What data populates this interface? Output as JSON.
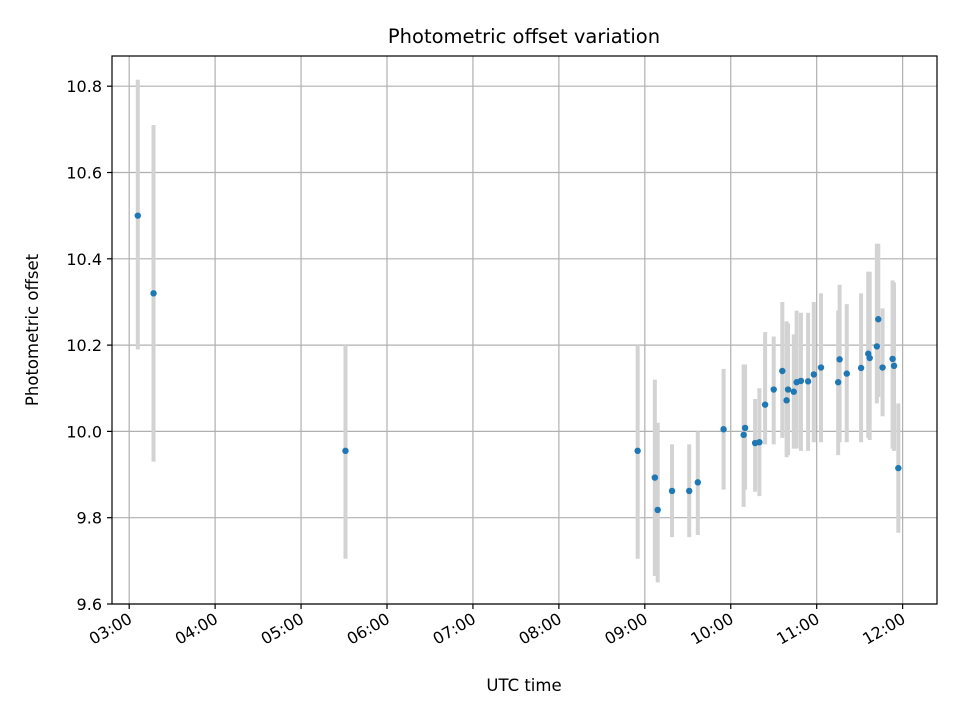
{
  "chart_data": {
    "type": "scatter",
    "title": "Photometric offset variation",
    "xlabel": "UTC time",
    "ylabel": "Photometric offset",
    "x_type": "time",
    "xlim": [
      "02:48",
      "12:24"
    ],
    "ylim": [
      9.6,
      10.87
    ],
    "x_ticks": [
      "03:00",
      "04:00",
      "05:00",
      "06:00",
      "07:00",
      "08:00",
      "09:00",
      "10:00",
      "11:00",
      "12:00"
    ],
    "y_ticks": [
      9.6,
      9.8,
      10.0,
      10.2,
      10.4,
      10.6,
      10.8
    ],
    "grid": true,
    "legend": "none",
    "colors": {
      "point": "#1f77b4",
      "error_bar": "#d3d3d3",
      "grid": "#b0b0b0"
    },
    "series": [
      {
        "x": [
          "03:06",
          "03:17",
          "05:31",
          "08:55",
          "09:07",
          "09:09",
          "09:19",
          "09:31",
          "09:37",
          "09:55",
          "10:09",
          "10:10",
          "10:17",
          "10:20",
          "10:24",
          "10:30",
          "10:36",
          "10:39",
          "10:40",
          "10:44",
          "10:46",
          "10:49",
          "10:54",
          "10:58",
          "11:03",
          "11:15",
          "11:16",
          "11:21",
          "11:31",
          "11:36",
          "11:37",
          "11:42",
          "11:43",
          "11:46",
          "11:53",
          "11:54",
          "11:57"
        ],
        "y": [
          10.5,
          10.32,
          9.955,
          9.955,
          9.893,
          9.818,
          9.862,
          9.862,
          9.882,
          10.005,
          9.992,
          10.008,
          9.973,
          9.975,
          10.062,
          10.097,
          10.14,
          10.072,
          10.097,
          10.092,
          10.114,
          10.117,
          10.116,
          10.132,
          10.148,
          10.114,
          10.167,
          10.134,
          10.147,
          10.18,
          10.17,
          10.197,
          10.26,
          10.148,
          10.168,
          10.152,
          9.915
        ],
        "y_err_low": [
          10.19,
          9.93,
          9.705,
          9.705,
          9.665,
          9.65,
          9.755,
          9.755,
          9.76,
          9.865,
          9.825,
          9.865,
          9.86,
          9.85,
          9.97,
          9.97,
          9.985,
          9.94,
          9.945,
          9.96,
          9.96,
          9.955,
          9.955,
          9.975,
          9.975,
          9.945,
          9.975,
          9.975,
          9.975,
          9.985,
          9.98,
          10.065,
          10.08,
          10.035,
          9.96,
          9.955,
          9.765
        ],
        "y_err_high": [
          10.815,
          10.71,
          10.2,
          10.2,
          10.12,
          10.02,
          9.97,
          9.97,
          10.0,
          10.145,
          10.155,
          10.155,
          10.075,
          10.1,
          10.23,
          10.22,
          10.3,
          10.255,
          10.25,
          10.225,
          10.28,
          10.275,
          10.275,
          10.3,
          10.32,
          10.28,
          10.34,
          10.295,
          10.32,
          10.37,
          10.37,
          10.435,
          10.435,
          10.285,
          10.35,
          10.345,
          10.065
        ]
      }
    ]
  }
}
